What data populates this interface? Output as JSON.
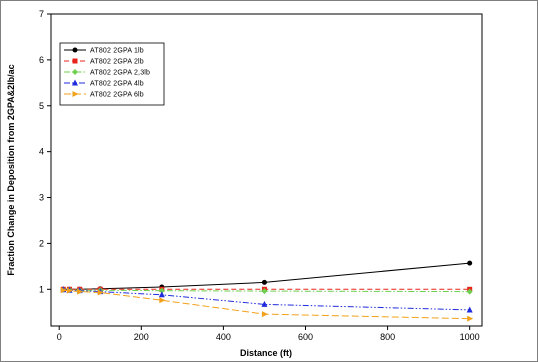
{
  "chart_data": {
    "type": "line",
    "xlabel": "Distance (ft)",
    "ylabel": "Fraction Change in Deposition from 2GPA&2lb/ac",
    "xlim": [
      -20,
      1030
    ],
    "ylim": [
      0.2,
      7
    ],
    "x_ticks": [
      0,
      200,
      400,
      600,
      800,
      1000
    ],
    "y_ticks": [
      1,
      2,
      3,
      4,
      5,
      6,
      7
    ],
    "grid": false,
    "legend_position": "top-left",
    "series": [
      {
        "name": "AT802 2GPA 1lb",
        "color": "#000000",
        "marker": "circle",
        "dash": "solid",
        "x": [
          10,
          25,
          50,
          100,
          250,
          500,
          1000
        ],
        "y": [
          1.0,
          1.0,
          1.0,
          1.01,
          1.05,
          1.15,
          1.57
        ]
      },
      {
        "name": "AT802 2GPA 2lb",
        "color": "#e8231c",
        "marker": "square",
        "dash": "dashed",
        "x": [
          10,
          25,
          50,
          100,
          250,
          500,
          1000
        ],
        "y": [
          1.0,
          1.0,
          1.0,
          1.0,
          1.0,
          1.0,
          1.0
        ]
      },
      {
        "name": "AT802 2GPA 2,3lb",
        "color": "#6fcf4f",
        "marker": "diamond",
        "dash": "dashdot",
        "x": [
          10,
          25,
          50,
          100,
          250,
          500,
          1000
        ],
        "y": [
          0.99,
          0.99,
          0.98,
          0.98,
          0.97,
          0.96,
          0.95
        ]
      },
      {
        "name": "AT802 2GPA 4lb",
        "color": "#1f2bdc",
        "marker": "triangle-up",
        "dash": "dashdotdot",
        "x": [
          10,
          25,
          50,
          100,
          250,
          500,
          1000
        ],
        "y": [
          0.99,
          0.98,
          0.97,
          0.95,
          0.88,
          0.67,
          0.55
        ]
      },
      {
        "name": "AT802 2GPA 6lb",
        "color": "#f2a11a",
        "marker": "triangle-right",
        "dash": "dashlong",
        "x": [
          10,
          25,
          50,
          100,
          250,
          500,
          1000
        ],
        "y": [
          0.98,
          0.97,
          0.95,
          0.93,
          0.76,
          0.46,
          0.36
        ]
      }
    ]
  }
}
